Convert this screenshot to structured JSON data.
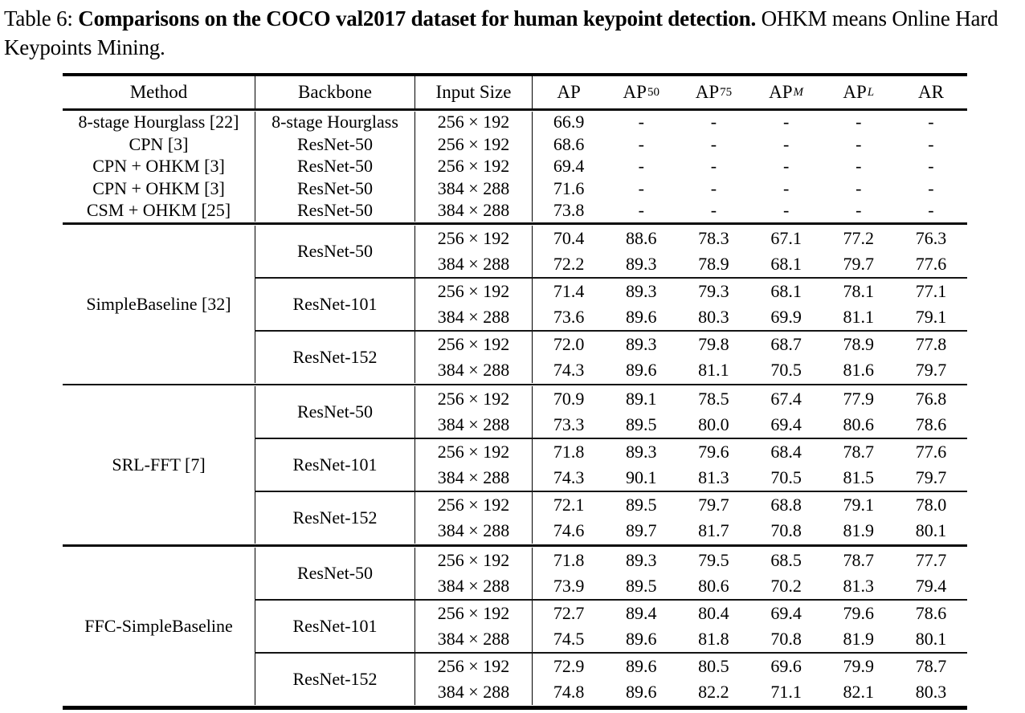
{
  "caption": {
    "prefix": "Table 6: ",
    "bold": "Comparisons on the COCO val2017 dataset for human keypoint detection.",
    "rest": " OHKM means Online Hard Keypoints Mining."
  },
  "table": {
    "columns": {
      "method": "Method",
      "backbone": "Backbone",
      "input_size": "Input Size"
    },
    "metric_headers": [
      {
        "base": "AP",
        "sup": "",
        "sup_italic": false
      },
      {
        "base": "AP",
        "sup": "50",
        "sup_italic": false
      },
      {
        "base": "AP",
        "sup": "75",
        "sup_italic": false
      },
      {
        "base": "AP",
        "sup": "M",
        "sup_italic": true
      },
      {
        "base": "AP",
        "sup": "L",
        "sup_italic": true
      },
      {
        "base": "AR",
        "sup": "",
        "sup_italic": false
      }
    ],
    "plain_rows": [
      {
        "method": "8-stage Hourglass [22]",
        "backbone": "8-stage Hourglass",
        "input": "256 × 192",
        "values": [
          "66.9",
          "-",
          "-",
          "-",
          "-",
          "-"
        ]
      },
      {
        "method": "CPN [3]",
        "backbone": "ResNet-50",
        "input": "256 × 192",
        "values": [
          "68.6",
          "-",
          "-",
          "-",
          "-",
          "-"
        ]
      },
      {
        "method": "CPN + OHKM [3]",
        "backbone": "ResNet-50",
        "input": "256 × 192",
        "values": [
          "69.4",
          "-",
          "-",
          "-",
          "-",
          "-"
        ]
      },
      {
        "method": "CPN + OHKM [3]",
        "backbone": "ResNet-50",
        "input": "384 × 288",
        "values": [
          "71.6",
          "-",
          "-",
          "-",
          "-",
          "-"
        ]
      },
      {
        "method": "CSM + OHKM [25]",
        "backbone": "ResNet-50",
        "input": "384 × 288",
        "values": [
          "73.8",
          "-",
          "-",
          "-",
          "-",
          "-"
        ]
      }
    ],
    "groups": [
      {
        "method": "SimpleBaseline [32]",
        "subblocks": [
          {
            "backbone": "ResNet-50",
            "rows": [
              {
                "input": "256 × 192",
                "values": [
                  "70.4",
                  "88.6",
                  "78.3",
                  "67.1",
                  "77.2",
                  "76.3"
                ]
              },
              {
                "input": "384 × 288",
                "values": [
                  "72.2",
                  "89.3",
                  "78.9",
                  "68.1",
                  "79.7",
                  "77.6"
                ]
              }
            ]
          },
          {
            "backbone": "ResNet-101",
            "rows": [
              {
                "input": "256 × 192",
                "values": [
                  "71.4",
                  "89.3",
                  "79.3",
                  "68.1",
                  "78.1",
                  "77.1"
                ]
              },
              {
                "input": "384 × 288",
                "values": [
                  "73.6",
                  "89.6",
                  "80.3",
                  "69.9",
                  "81.1",
                  "79.1"
                ]
              }
            ]
          },
          {
            "backbone": "ResNet-152",
            "rows": [
              {
                "input": "256 × 192",
                "values": [
                  "72.0",
                  "89.3",
                  "79.8",
                  "68.7",
                  "78.9",
                  "77.8"
                ]
              },
              {
                "input": "384 × 288",
                "values": [
                  "74.3",
                  "89.6",
                  "81.1",
                  "70.5",
                  "81.6",
                  "79.7"
                ]
              }
            ]
          }
        ]
      },
      {
        "method": "SRL-FFT [7]",
        "subblocks": [
          {
            "backbone": "ResNet-50",
            "rows": [
              {
                "input": "256 × 192",
                "values": [
                  "70.9",
                  "89.1",
                  "78.5",
                  "67.4",
                  "77.9",
                  "76.8"
                ]
              },
              {
                "input": "384 × 288",
                "values": [
                  "73.3",
                  "89.5",
                  "80.0",
                  "69.4",
                  "80.6",
                  "78.6"
                ]
              }
            ]
          },
          {
            "backbone": "ResNet-101",
            "rows": [
              {
                "input": "256 × 192",
                "values": [
                  "71.8",
                  "89.3",
                  "79.6",
                  "68.4",
                  "78.7",
                  "77.6"
                ]
              },
              {
                "input": "384 × 288",
                "values": [
                  "74.3",
                  "90.1",
                  "81.3",
                  "70.5",
                  "81.5",
                  "79.7"
                ]
              }
            ]
          },
          {
            "backbone": "ResNet-152",
            "rows": [
              {
                "input": "256 × 192",
                "values": [
                  "72.1",
                  "89.5",
                  "79.7",
                  "68.8",
                  "79.1",
                  "78.0"
                ]
              },
              {
                "input": "384 × 288",
                "values": [
                  "74.6",
                  "89.7",
                  "81.7",
                  "70.8",
                  "81.9",
                  "80.1"
                ]
              }
            ]
          }
        ]
      },
      {
        "method": "FFC-SimpleBaseline",
        "subblocks": [
          {
            "backbone": "ResNet-50",
            "rows": [
              {
                "input": "256 × 192",
                "values": [
                  "71.8",
                  "89.3",
                  "79.5",
                  "68.5",
                  "78.7",
                  "77.7"
                ]
              },
              {
                "input": "384 × 288",
                "values": [
                  "73.9",
                  "89.5",
                  "80.6",
                  "70.2",
                  "81.3",
                  "79.4"
                ]
              }
            ]
          },
          {
            "backbone": "ResNet-101",
            "rows": [
              {
                "input": "256 × 192",
                "values": [
                  "72.7",
                  "89.4",
                  "80.4",
                  "69.4",
                  "79.6",
                  "78.6"
                ]
              },
              {
                "input": "384 × 288",
                "values": [
                  "74.5",
                  "89.6",
                  "81.8",
                  "70.8",
                  "81.9",
                  "80.1"
                ]
              }
            ]
          },
          {
            "backbone": "ResNet-152",
            "rows": [
              {
                "input": "256 × 192",
                "values": [
                  "72.9",
                  "89.6",
                  "80.5",
                  "69.6",
                  "79.9",
                  "78.7"
                ]
              },
              {
                "input": "384 × 288",
                "values": [
                  "74.8",
                  "89.6",
                  "82.2",
                  "71.1",
                  "82.1",
                  "80.3"
                ]
              }
            ]
          }
        ]
      }
    ]
  }
}
